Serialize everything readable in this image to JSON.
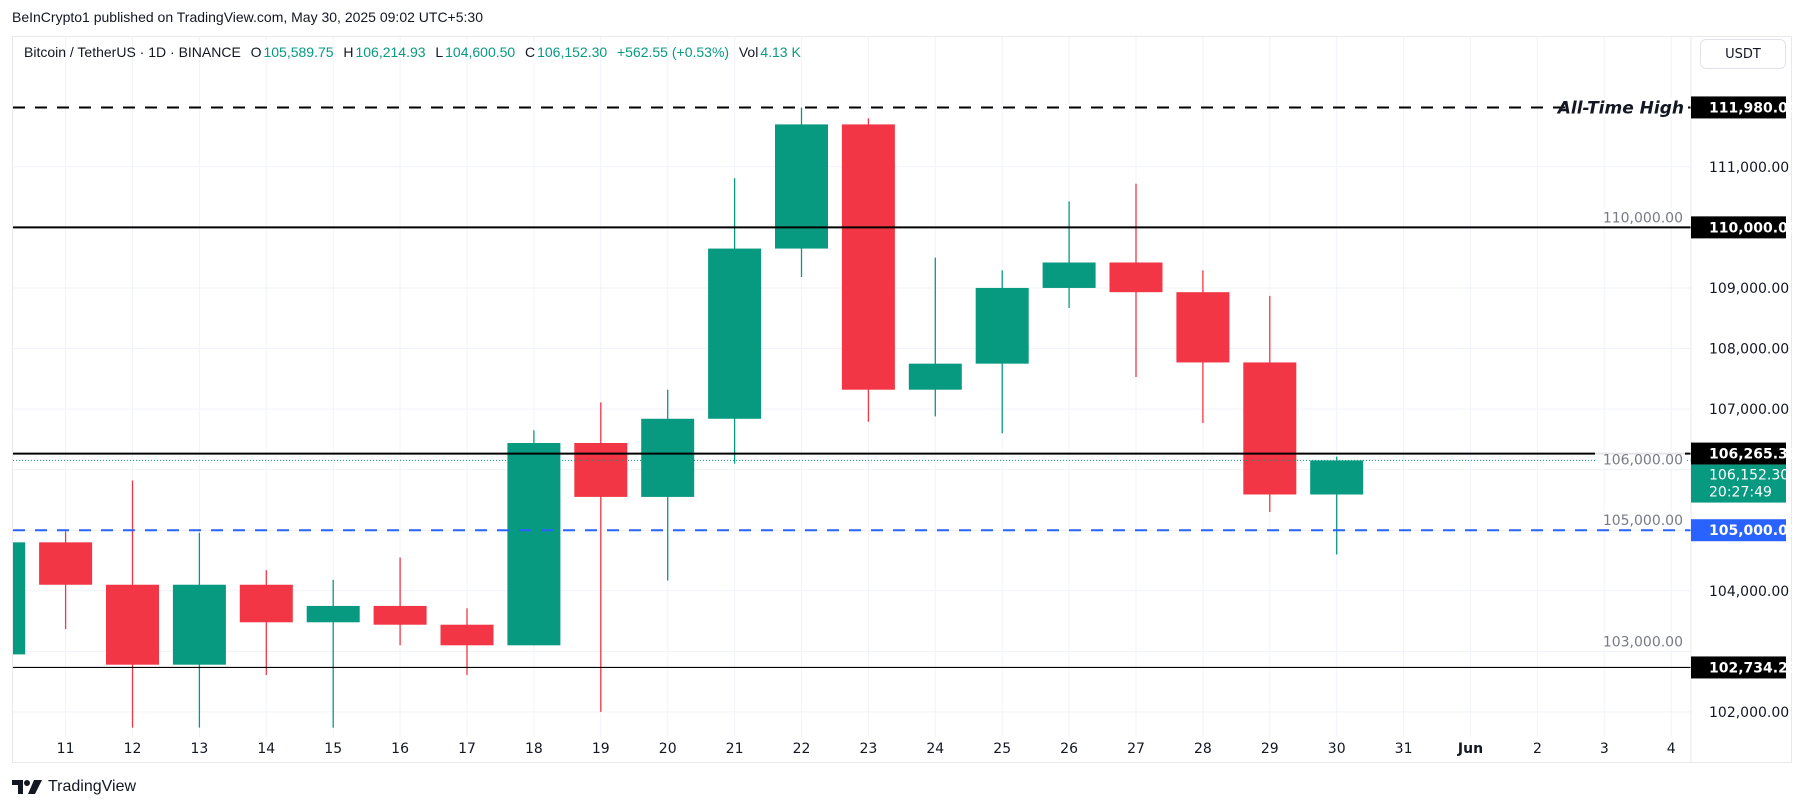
{
  "header": {
    "published": "BeInCrypto1 published on TradingView.com, May 30, 2025 09:02 UTC+5:30"
  },
  "legend": {
    "symbol": "Bitcoin / TetherUS · 1D · BINANCE",
    "o_label": "O",
    "o": "105,589.75",
    "h_label": "H",
    "h": "106,214.93",
    "l_label": "L",
    "l": "104,600.50",
    "c_label": "C",
    "c": "106,152.30",
    "change": "+562.55 (+0.53%)",
    "vol_label": "Vol",
    "vol": "4.13 K"
  },
  "currency_button": "USDT",
  "footer": {
    "brand": "TradingView"
  },
  "colors": {
    "up": "#089981",
    "down": "#f23645",
    "support_blue": "#2962ff",
    "level": "#000000"
  },
  "chart_data": {
    "type": "candlestick",
    "ylim": [
      101600,
      112400
    ],
    "grid": true,
    "y_ticks": [
      102000,
      103000,
      104000,
      105000,
      106000,
      107000,
      108000,
      109000,
      110000,
      111000
    ],
    "y_tick_labels": [
      "102,000.00",
      "103,000.00",
      "104,000.00",
      "105,000.00",
      "106,000.00",
      "107,000.00",
      "108,000.00",
      "109,000.00",
      "110,000.00",
      "111,000.00"
    ],
    "x_tick_labels": [
      "11",
      "12",
      "13",
      "14",
      "15",
      "16",
      "17",
      "18",
      "19",
      "20",
      "21",
      "22",
      "23",
      "24",
      "25",
      "26",
      "27",
      "28",
      "29",
      "30",
      "31",
      "Jun",
      "2",
      "3",
      "4"
    ],
    "candles": [
      {
        "date": "2025-05-10",
        "o": 102950,
        "h": 104800,
        "l": 102950,
        "c": 104800
      },
      {
        "date": "2025-05-11",
        "o": 104800,
        "h": 104980,
        "l": 103370,
        "c": 104100
      },
      {
        "date": "2025-05-12",
        "o": 104100,
        "h": 105820,
        "l": 101740,
        "c": 102780
      },
      {
        "date": "2025-05-13",
        "o": 102780,
        "h": 104960,
        "l": 101740,
        "c": 104100
      },
      {
        "date": "2025-05-14",
        "o": 104100,
        "h": 104340,
        "l": 102610,
        "c": 103480
      },
      {
        "date": "2025-05-15",
        "o": 103480,
        "h": 104180,
        "l": 101740,
        "c": 103750
      },
      {
        "date": "2025-05-16",
        "o": 103750,
        "h": 104550,
        "l": 103100,
        "c": 103440
      },
      {
        "date": "2025-05-17",
        "o": 103440,
        "h": 103710,
        "l": 102610,
        "c": 103100
      },
      {
        "date": "2025-05-18",
        "o": 103100,
        "h": 106650,
        "l": 103100,
        "c": 106440
      },
      {
        "date": "2025-05-19",
        "o": 106440,
        "h": 107110,
        "l": 102000,
        "c": 105550
      },
      {
        "date": "2025-05-20",
        "o": 105550,
        "h": 107320,
        "l": 104170,
        "c": 106840
      },
      {
        "date": "2025-05-21",
        "o": 106840,
        "h": 110810,
        "l": 106100,
        "c": 109650
      },
      {
        "date": "2025-05-22",
        "o": 109650,
        "h": 111980,
        "l": 109180,
        "c": 111700
      },
      {
        "date": "2025-05-23",
        "o": 111700,
        "h": 111800,
        "l": 106790,
        "c": 107320
      },
      {
        "date": "2025-05-24",
        "o": 107320,
        "h": 109500,
        "l": 106880,
        "c": 107750
      },
      {
        "date": "2025-05-25",
        "o": 107750,
        "h": 109290,
        "l": 106600,
        "c": 109000
      },
      {
        "date": "2025-05-26",
        "o": 109000,
        "h": 110430,
        "l": 108670,
        "c": 109420
      },
      {
        "date": "2025-05-27",
        "o": 109420,
        "h": 110720,
        "l": 107530,
        "c": 108930
      },
      {
        "date": "2025-05-28",
        "o": 108930,
        "h": 109290,
        "l": 106770,
        "c": 107770
      },
      {
        "date": "2025-05-29",
        "o": 107770,
        "h": 108870,
        "l": 105300,
        "c": 105590
      },
      {
        "date": "2025-05-30",
        "o": 105589.75,
        "h": 106214.93,
        "l": 104600.5,
        "c": 106152.3
      }
    ],
    "levels": [
      {
        "price": 111980,
        "label": "111,980.00",
        "style": "dashed",
        "color": "#000000",
        "note": "All-Time High"
      },
      {
        "price": 110000,
        "label": "110,000.00",
        "style": "solid",
        "color": "#000000"
      },
      {
        "price": 106265.31,
        "label": "106,265.31",
        "style": "solid",
        "color": "#000000"
      },
      {
        "price": 105000,
        "label": "105,000.00",
        "style": "dashed",
        "color": "#2962ff"
      },
      {
        "price": 102734.23,
        "label": "102,734.23",
        "style": "solid-thin",
        "color": "#000000"
      }
    ],
    "last_price": {
      "price": 106152.3,
      "label": "106,152.30",
      "countdown": "20:27:49",
      "color": "#089981"
    }
  }
}
